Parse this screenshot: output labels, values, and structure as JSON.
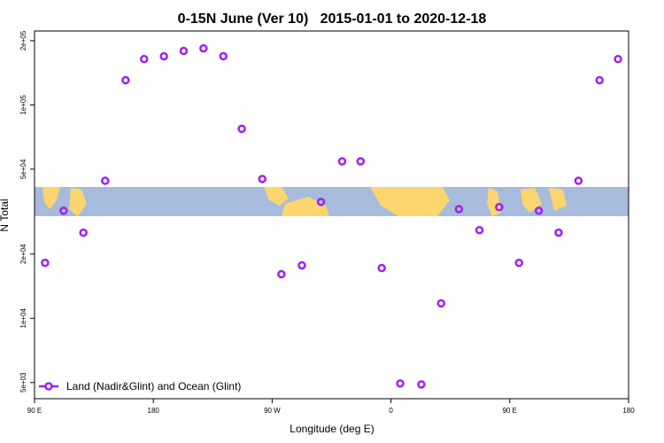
{
  "chart_data": {
    "type": "scatter",
    "title": "0-15N June (Ver 10)   2015-01-01 to 2020-12-18",
    "x_label": "Longitude (deg E)",
    "y_label": "N Total",
    "xlim": [
      90,
      540
    ],
    "xticks": [
      {
        "value": 90,
        "label": "90 E"
      },
      {
        "value": 180,
        "label": "180"
      },
      {
        "value": 270,
        "label": "90 W"
      },
      {
        "value": 360,
        "label": "0"
      },
      {
        "value": 450,
        "label": "90 E"
      },
      {
        "value": 540,
        "label": "180"
      }
    ],
    "ylim": [
      4200,
      222000
    ],
    "log_y": true,
    "yticks": [
      {
        "value": 5000,
        "label": "5e+03"
      },
      {
        "value": 10000,
        "label": "1e+04"
      },
      {
        "value": 20000,
        "label": "2e+04"
      },
      {
        "value": 50000,
        "label": "5e+04"
      },
      {
        "value": 100000,
        "label": "1e+05"
      },
      {
        "value": 200000,
        "label": "2e+05"
      }
    ],
    "legend": "bottom-left",
    "series": [
      {
        "name": "Land (Nadir&Glint) and Ocean (Glint)",
        "color": "#a020f0",
        "x": [
          98,
          112,
          127,
          143.5,
          159,
          173,
          188,
          203,
          218,
          233,
          247,
          262.5,
          277,
          292.5,
          307,
          323,
          337,
          353,
          367,
          383,
          398,
          411.5,
          427,
          442,
          457,
          472,
          487,
          502,
          518,
          532
        ],
        "values": [
          18200,
          31900,
          25200,
          44100,
          130600,
          164000,
          169000,
          179000,
          184000,
          169000,
          77300,
          45000,
          16100,
          17700,
          35100,
          54400,
          54400,
          17200,
          4950,
          4900,
          11750,
          32500,
          25900,
          33200,
          18200,
          31900,
          25200,
          44100,
          130600,
          164000
        ]
      }
    ]
  }
}
